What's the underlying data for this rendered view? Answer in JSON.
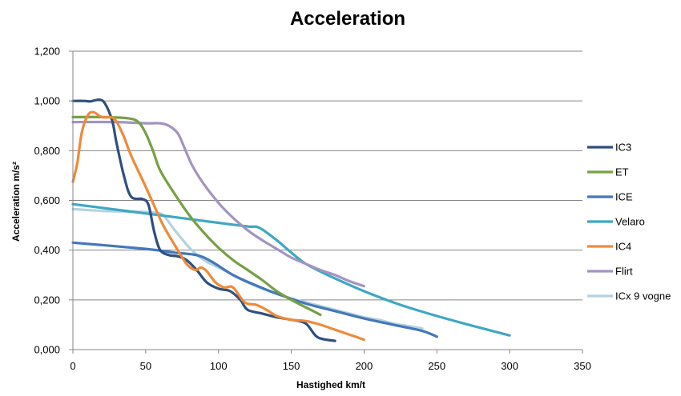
{
  "chart_data": {
    "type": "line",
    "title": "Acceleration",
    "xlabel": "Hastighed km/t",
    "ylabel": "Acceleration m/s²",
    "xlim": [
      0,
      350
    ],
    "ylim": [
      0,
      1.2
    ],
    "x_ticks": [
      0,
      50,
      100,
      150,
      200,
      250,
      300,
      350
    ],
    "y_ticks": [
      0,
      0.2,
      0.4,
      0.6,
      0.8,
      1.0,
      1.2
    ],
    "x_tick_labels": [
      "0",
      "50",
      "100",
      "150",
      "200",
      "250",
      "300",
      "350"
    ],
    "y_tick_labels": [
      "0,000",
      "0,200",
      "0,400",
      "0,600",
      "0,800",
      "1,000",
      "1,200"
    ],
    "grid": "horizontal",
    "legend_position": "right",
    "series": [
      {
        "name": "IC3",
        "color": "#2F4F7F",
        "points": [
          [
            0,
            1.0
          ],
          [
            8,
            1.0
          ],
          [
            12,
            0.998
          ],
          [
            18,
            1.005
          ],
          [
            22,
            0.99
          ],
          [
            27,
            0.92
          ],
          [
            30,
            0.83
          ],
          [
            35,
            0.7
          ],
          [
            40,
            0.615
          ],
          [
            48,
            0.605
          ],
          [
            52,
            0.58
          ],
          [
            56,
            0.47
          ],
          [
            60,
            0.4
          ],
          [
            66,
            0.38
          ],
          [
            72,
            0.375
          ],
          [
            78,
            0.36
          ],
          [
            85,
            0.32
          ],
          [
            92,
            0.27
          ],
          [
            100,
            0.245
          ],
          [
            108,
            0.235
          ],
          [
            115,
            0.2
          ],
          [
            120,
            0.16
          ],
          [
            130,
            0.145
          ],
          [
            140,
            0.13
          ],
          [
            150,
            0.12
          ],
          [
            160,
            0.105
          ],
          [
            168,
            0.05
          ],
          [
            180,
            0.035
          ]
        ]
      },
      {
        "name": "ET",
        "color": "#77A045",
        "points": [
          [
            0,
            0.935
          ],
          [
            20,
            0.935
          ],
          [
            38,
            0.93
          ],
          [
            45,
            0.915
          ],
          [
            50,
            0.87
          ],
          [
            55,
            0.8
          ],
          [
            60,
            0.72
          ],
          [
            70,
            0.625
          ],
          [
            80,
            0.54
          ],
          [
            90,
            0.47
          ],
          [
            100,
            0.41
          ],
          [
            110,
            0.36
          ],
          [
            120,
            0.32
          ],
          [
            130,
            0.28
          ],
          [
            140,
            0.235
          ],
          [
            150,
            0.2
          ],
          [
            160,
            0.17
          ],
          [
            170,
            0.14
          ]
        ]
      },
      {
        "name": "ICE",
        "color": "#4477BB",
        "points": [
          [
            0,
            0.43
          ],
          [
            50,
            0.405
          ],
          [
            70,
            0.39
          ],
          [
            85,
            0.38
          ],
          [
            95,
            0.355
          ],
          [
            110,
            0.3
          ],
          [
            125,
            0.26
          ],
          [
            140,
            0.225
          ],
          [
            160,
            0.185
          ],
          [
            180,
            0.155
          ],
          [
            200,
            0.125
          ],
          [
            220,
            0.1
          ],
          [
            240,
            0.075
          ],
          [
            250,
            0.052
          ]
        ]
      },
      {
        "name": "Velaro",
        "color": "#3EA7C4",
        "points": [
          [
            0,
            0.585
          ],
          [
            20,
            0.57
          ],
          [
            40,
            0.555
          ],
          [
            60,
            0.54
          ],
          [
            80,
            0.525
          ],
          [
            100,
            0.51
          ],
          [
            120,
            0.495
          ],
          [
            128,
            0.49
          ],
          [
            140,
            0.44
          ],
          [
            150,
            0.39
          ],
          [
            160,
            0.345
          ],
          [
            175,
            0.3
          ],
          [
            200,
            0.235
          ],
          [
            225,
            0.18
          ],
          [
            250,
            0.135
          ],
          [
            275,
            0.095
          ],
          [
            300,
            0.057
          ]
        ]
      },
      {
        "name": "IC4",
        "color": "#EE8A3A",
        "points": [
          [
            0,
            0.675
          ],
          [
            3,
            0.75
          ],
          [
            6,
            0.87
          ],
          [
            10,
            0.94
          ],
          [
            14,
            0.955
          ],
          [
            20,
            0.935
          ],
          [
            28,
            0.93
          ],
          [
            34,
            0.87
          ],
          [
            40,
            0.78
          ],
          [
            48,
            0.68
          ],
          [
            55,
            0.59
          ],
          [
            62,
            0.5
          ],
          [
            70,
            0.42
          ],
          [
            78,
            0.345
          ],
          [
            84,
            0.32
          ],
          [
            88,
            0.33
          ],
          [
            92,
            0.315
          ],
          [
            98,
            0.27
          ],
          [
            104,
            0.25
          ],
          [
            110,
            0.25
          ],
          [
            118,
            0.19
          ],
          [
            126,
            0.18
          ],
          [
            133,
            0.16
          ],
          [
            140,
            0.135
          ],
          [
            150,
            0.12
          ],
          [
            160,
            0.115
          ],
          [
            170,
            0.1
          ],
          [
            180,
            0.08
          ],
          [
            190,
            0.06
          ],
          [
            200,
            0.04
          ]
        ]
      },
      {
        "name": "Flirt",
        "color": "#A394C0",
        "points": [
          [
            0,
            0.915
          ],
          [
            30,
            0.915
          ],
          [
            50,
            0.91
          ],
          [
            60,
            0.91
          ],
          [
            66,
            0.9
          ],
          [
            72,
            0.87
          ],
          [
            76,
            0.82
          ],
          [
            82,
            0.74
          ],
          [
            90,
            0.665
          ],
          [
            100,
            0.59
          ],
          [
            110,
            0.53
          ],
          [
            120,
            0.48
          ],
          [
            130,
            0.44
          ],
          [
            140,
            0.405
          ],
          [
            150,
            0.37
          ],
          [
            160,
            0.345
          ],
          [
            170,
            0.32
          ],
          [
            180,
            0.3
          ],
          [
            190,
            0.275
          ],
          [
            200,
            0.255
          ]
        ]
      },
      {
        "name": "ICx 9 vogne",
        "color": "#B3D3E0",
        "points": [
          [
            0,
            0.565
          ],
          [
            20,
            0.558
          ],
          [
            40,
            0.555
          ],
          [
            55,
            0.552
          ],
          [
            62,
            0.54
          ],
          [
            70,
            0.48
          ],
          [
            80,
            0.41
          ],
          [
            90,
            0.36
          ],
          [
            100,
            0.33
          ],
          [
            110,
            0.3
          ],
          [
            120,
            0.27
          ],
          [
            130,
            0.245
          ],
          [
            140,
            0.225
          ],
          [
            150,
            0.205
          ],
          [
            160,
            0.19
          ],
          [
            170,
            0.175
          ],
          [
            180,
            0.16
          ],
          [
            190,
            0.145
          ],
          [
            200,
            0.13
          ],
          [
            210,
            0.12
          ],
          [
            220,
            0.105
          ],
          [
            230,
            0.095
          ],
          [
            240,
            0.085
          ]
        ]
      }
    ]
  }
}
